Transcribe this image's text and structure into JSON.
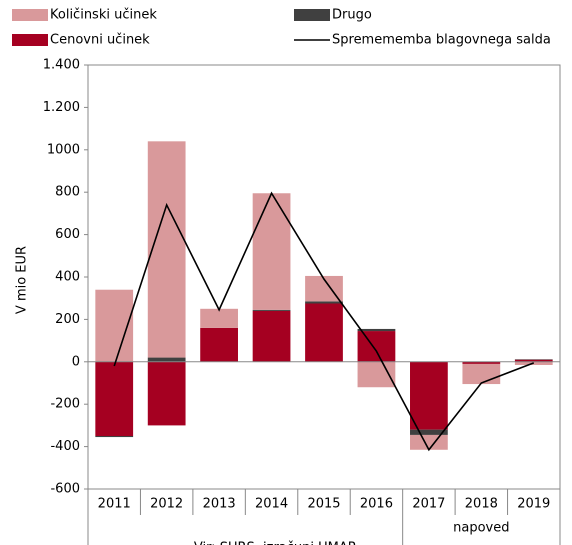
{
  "chart_data": {
    "type": "bar",
    "stacked": true,
    "ylabel": "V mio EUR",
    "categories": [
      "2011",
      "2012",
      "2013",
      "2014",
      "2015",
      "2016",
      "2017",
      "2018",
      "2019"
    ],
    "group_label": "napoved",
    "source": "Vir: SURS, izračuni UMAR",
    "series": [
      {
        "name": "Cenovni učinek",
        "type": "bar",
        "color": "#a50021",
        "values": [
          -350,
          -300,
          160,
          240,
          275,
          145,
          -320,
          -10,
          10
        ]
      },
      {
        "name": "Drugo",
        "type": "bar",
        "color": "#404040",
        "values": [
          -5,
          20,
          0,
          5,
          10,
          10,
          -25,
          0,
          2
        ]
      },
      {
        "name": "Količinski učinek",
        "type": "bar",
        "color": "#d9999b",
        "values": [
          340,
          1020,
          90,
          550,
          120,
          -120,
          -70,
          -95,
          -15
        ]
      },
      {
        "name": "Spremememba blagovnega salda",
        "type": "line",
        "color": "#000000",
        "values": [
          -20,
          740,
          245,
          795,
          390,
          50,
          -415,
          -100,
          -5
        ]
      }
    ],
    "ylim": [
      -600,
      1400
    ],
    "yticks": [
      -600,
      -400,
      -200,
      0,
      200,
      400,
      600,
      800,
      1000,
      {
        "value": 1200,
        "label": "1.200"
      },
      {
        "value": 1400,
        "label": "1.400"
      }
    ],
    "grid": false
  }
}
